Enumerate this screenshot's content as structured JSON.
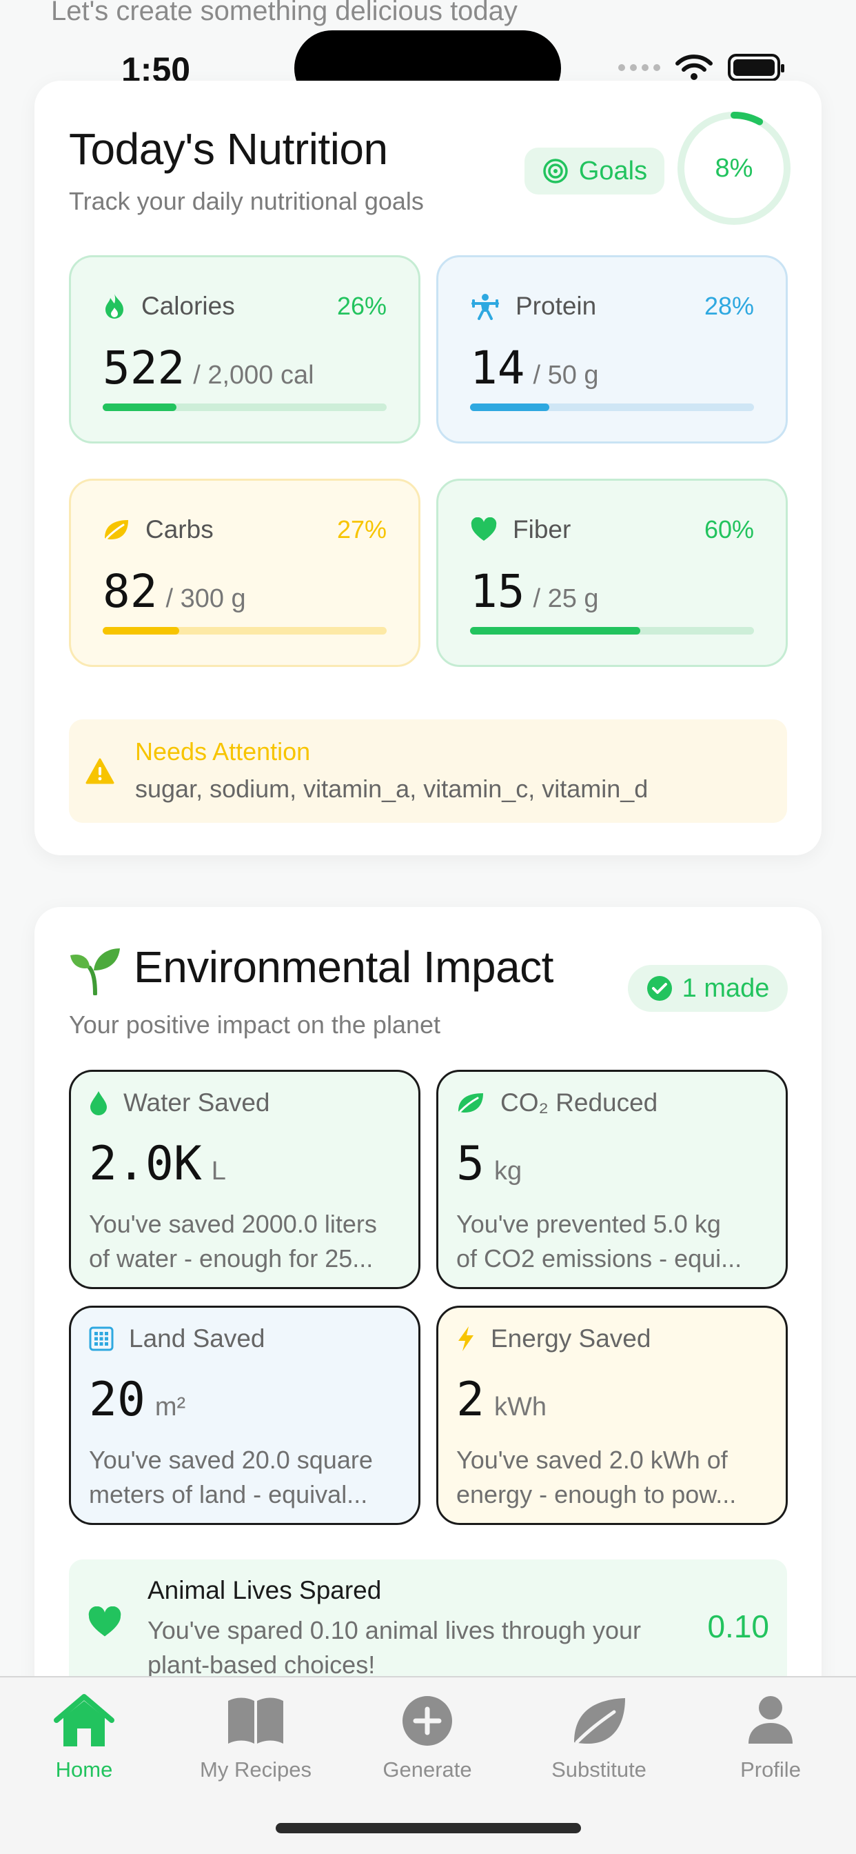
{
  "status": {
    "time": "1:50"
  },
  "top_hint": "Let's create something delicious today",
  "nutrition": {
    "title": "Today's Nutrition",
    "subtitle": "Track your daily nutritional goals",
    "goals_label": "Goals",
    "overall_percent": "8%",
    "overall_fraction": 0.08,
    "metrics": [
      {
        "name": "Calories",
        "percent": "26%",
        "value": "522",
        "goal": "/ 2,000 cal",
        "fraction": 0.26,
        "color": "#22c35e",
        "track": "#cdeed8",
        "icon": "flame-icon"
      },
      {
        "name": "Protein",
        "percent": "28%",
        "value": "14",
        "goal": "/ 50 g",
        "fraction": 0.28,
        "color": "#2ea8e0",
        "track": "#cfe6f5",
        "icon": "weightlifter-icon"
      },
      {
        "name": "Carbs",
        "percent": "27%",
        "value": "82",
        "goal": "/ 300 g",
        "fraction": 0.27,
        "color": "#f7c400",
        "track": "#fde9a6",
        "icon": "leaf-icon"
      },
      {
        "name": "Fiber",
        "percent": "60%",
        "value": "15",
        "goal": "/ 25 g",
        "fraction": 0.6,
        "color": "#22c35e",
        "track": "#cdeed8",
        "icon": "heart-icon"
      }
    ],
    "attention": {
      "title": "Needs Attention",
      "text": "sugar, sodium, vitamin_a, vitamin_c, vitamin_d"
    }
  },
  "environment": {
    "title": "Environmental Impact",
    "subtitle": "Your positive impact on the planet",
    "made_label": "1 made",
    "tiles": [
      {
        "name": "Water Saved",
        "value": "2.0K",
        "unit": "L",
        "line1": "You've saved 2000.0 liters",
        "line2": "of water - enough for 25...",
        "icon": "water-drop-icon"
      },
      {
        "name": "CO₂ Reduced",
        "value": "5",
        "unit": "kg",
        "line1": "You've prevented 5.0 kg",
        "line2": "of CO2 emissions - equi...",
        "icon": "leaf-icon"
      },
      {
        "name": "Land Saved",
        "value": "20",
        "unit": "m²",
        "line1": "You've saved 20.0 square",
        "line2": "meters of land - equival...",
        "icon": "grid-icon"
      },
      {
        "name": "Energy Saved",
        "value": "2",
        "unit": "kWh",
        "line1": "You've saved 2.0 kWh of",
        "line2": "energy - enough to pow...",
        "icon": "bolt-icon"
      }
    ],
    "animal": {
      "title": "Animal Lives Spared",
      "text": "You've spared 0.10 animal lives through your plant-based choices!",
      "value": "0.10"
    }
  },
  "tabs": [
    {
      "label": "Home",
      "active": true
    },
    {
      "label": "My Recipes",
      "active": false
    },
    {
      "label": "Generate",
      "active": false
    },
    {
      "label": "Substitute",
      "active": false
    },
    {
      "label": "Profile",
      "active": false
    }
  ],
  "colors": {
    "accent": "#22c35e",
    "blue": "#2ea8e0",
    "yellow": "#f7c400"
  }
}
